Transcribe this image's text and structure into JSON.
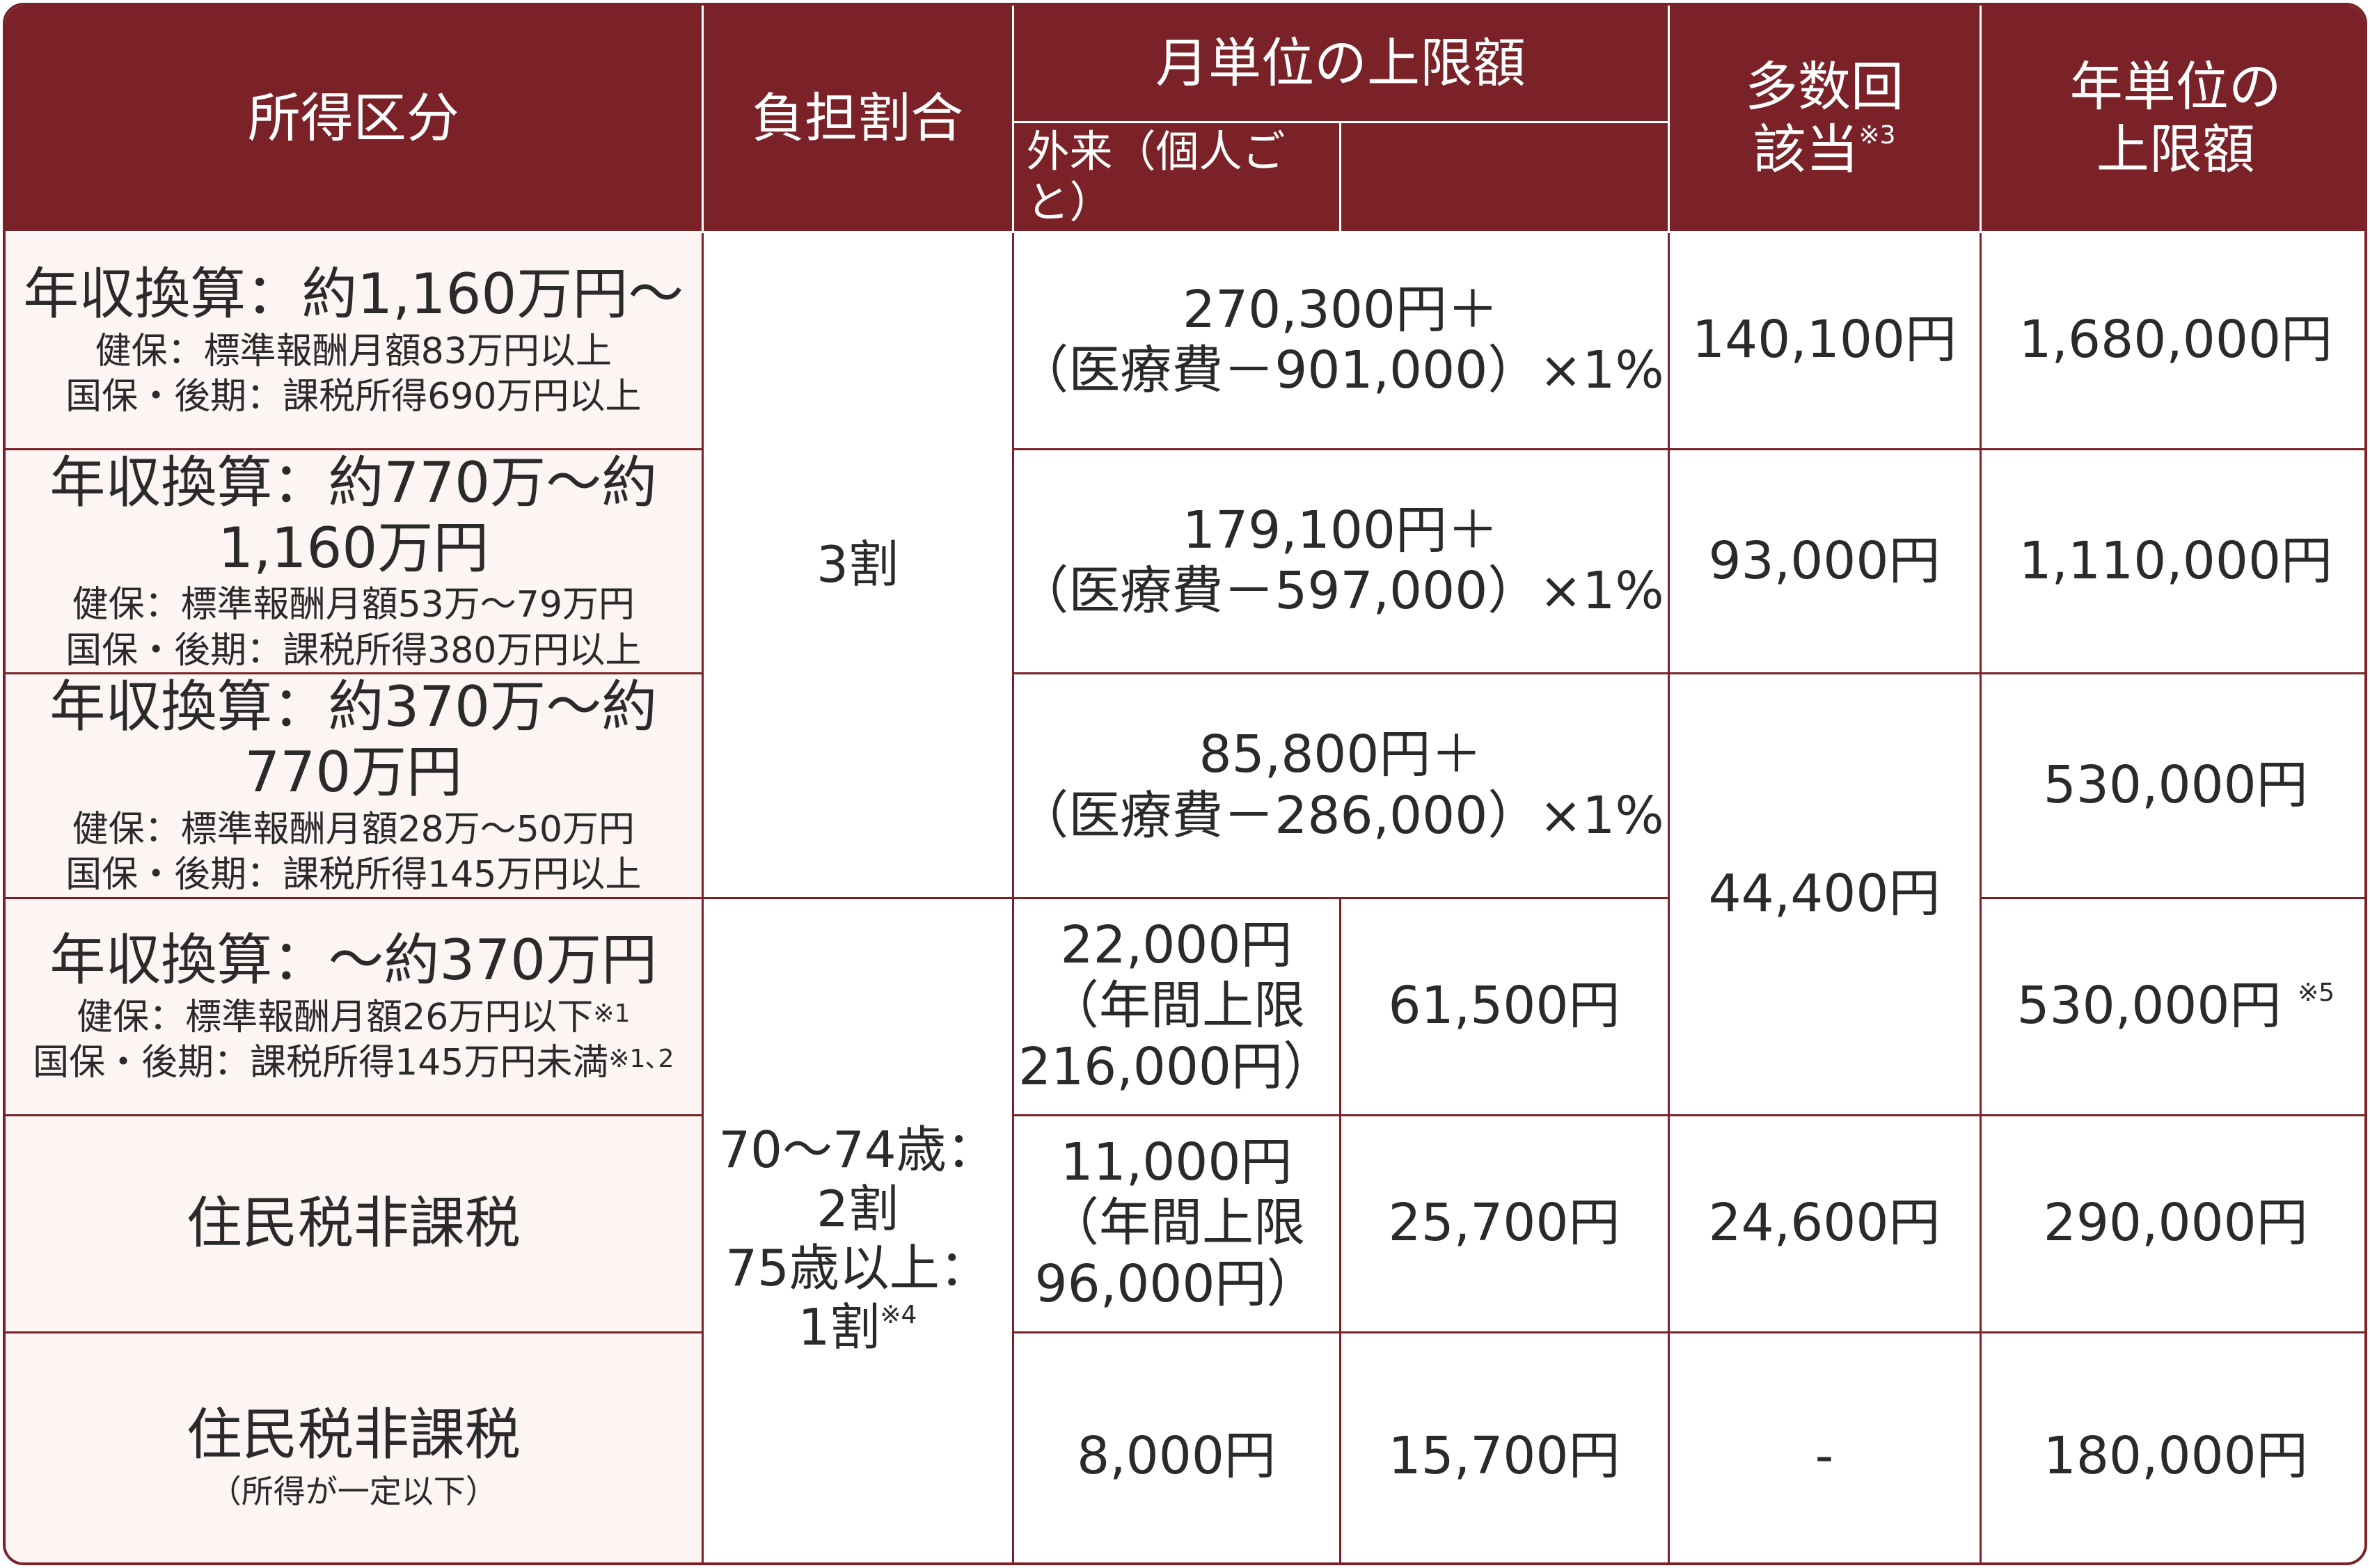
{
  "header": {
    "income_class": "所得区分",
    "burden_ratio": "負担割合",
    "monthly_limit": "月単位の上限額",
    "outpatient": "外来（個人ごと）",
    "multiple_1": "多数回",
    "multiple_2": "該当",
    "multiple_note": "※3",
    "yearly_1": "年単位の",
    "yearly_2": "上限額"
  },
  "rows": [
    {
      "income_main": "年収換算：約1,160万円～",
      "income_sub1": "健保：標準報酬月額83万円以上",
      "income_sub2": "国保・後期：課税所得690万円以上",
      "monthly_1": "270,300円＋",
      "monthly_2": "（医療費－901,000）×1%",
      "multiple": "140,100円",
      "yearly": "1,680,000円"
    },
    {
      "income_main": "年収換算：約770万～約1,160万円",
      "income_sub1": "健保：標準報酬月額53万～79万円",
      "income_sub2": "国保・後期：課税所得380万円以上",
      "monthly_1": "179,100円＋",
      "monthly_2": "（医療費－597,000）×1%",
      "multiple": "93,000円",
      "yearly": "1,110,000円"
    },
    {
      "income_main": "年収換算：約370万～約770万円",
      "income_sub1": "健保：標準報酬月額28万～50万円",
      "income_sub2": "国保・後期：課税所得145万円以上",
      "monthly_1": "85,800円＋",
      "monthly_2": "（医療費－286,000）×1%",
      "yearly": "530,000円"
    },
    {
      "income_main": "年収換算：～約370万円",
      "income_sub1": "健保：標準報酬月額26万円以下",
      "income_sub1_note": "※1",
      "income_sub2": "国保・後期：課税所得145万円未満",
      "income_sub2_note": "※1､2",
      "outpatient_1": "22,000円",
      "outpatient_2": "（年間上限",
      "outpatient_3": "216,000円）",
      "monthly": "61,500円",
      "yearly": "530,000円",
      "yearly_note": "※5"
    },
    {
      "income_main": "住民税非課税",
      "outpatient_1": "11,000円",
      "outpatient_2": "（年間上限",
      "outpatient_3": "96,000円）",
      "monthly": "25,700円",
      "multiple": "24,600円",
      "yearly": "290,000円"
    },
    {
      "income_main": "住民税非課税",
      "income_sub1": "（所得が一定以下）",
      "outpatient": "8,000円",
      "monthly": "15,700円",
      "multiple": "-",
      "yearly": "180,000円"
    }
  ],
  "burden_top": "3割",
  "burden_bottom": {
    "line1": "70～74歳：",
    "line2": "2割",
    "line3": "75歳以上：",
    "line4": "1割",
    "note": "※4"
  },
  "multiple_shared": "44,400円",
  "colors": {
    "header_bg": "#7a2228",
    "border": "#7a2228",
    "income_cell_bg": "#fdf4f4",
    "text": "#2a2a2a"
  }
}
